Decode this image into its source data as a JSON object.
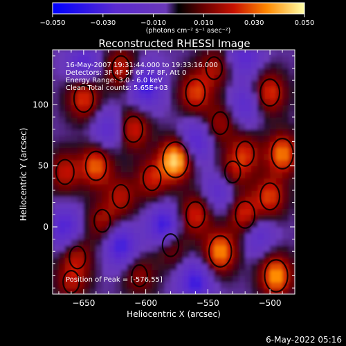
{
  "colorbar": {
    "ticks": [
      "-0.050",
      "-0.030",
      "-0.010",
      "0.010",
      "0.030",
      "0.050"
    ],
    "unit_label": "(photons cm⁻² s⁻¹ asec⁻²)",
    "range": [
      -0.05,
      0.05
    ]
  },
  "chart_data": {
    "type": "heatmap",
    "title": "Reconstructed RHESSI Image",
    "xlabel": "Heliocentric X (arcsec)",
    "ylabel": "Heliocentric Y (arcsec)",
    "xlim": [
      -675,
      -480
    ],
    "ylim": [
      -55,
      145
    ],
    "x_ticks": [
      -650,
      -600,
      -550,
      -500
    ],
    "y_ticks": [
      0,
      50,
      100
    ],
    "x_tick_labels": [
      "−650",
      "−600",
      "−550",
      "−500"
    ],
    "y_tick_labels": [
      "0",
      "50",
      "100"
    ],
    "info_lines": [
      "16-May-2007 19:31:44.000 to 19:33:16.000",
      "Detectors: 3F 4F 5F 6F 7F 8F, Att 0",
      "Energy Range: 3.0 - 6.0 keV",
      "Clean     Total counts: 5.65E+03"
    ],
    "peak_text": "Position of Peak = [-576,55]",
    "peak": {
      "x": -576,
      "y": 55
    },
    "blobs": [
      {
        "x": -576,
        "y": 55,
        "value": 0.05
      },
      {
        "x": -640,
        "y": 50,
        "value": 0.035
      },
      {
        "x": -650,
        "y": 105,
        "value": 0.03
      },
      {
        "x": -665,
        "y": 45,
        "value": 0.025
      },
      {
        "x": -635,
        "y": 5,
        "value": 0.02
      },
      {
        "x": -560,
        "y": 10,
        "value": 0.028
      },
      {
        "x": -540,
        "y": -20,
        "value": 0.04
      },
      {
        "x": -520,
        "y": 10,
        "value": 0.03
      },
      {
        "x": -490,
        "y": 60,
        "value": 0.038
      },
      {
        "x": -495,
        "y": -40,
        "value": 0.042
      },
      {
        "x": -500,
        "y": 110,
        "value": 0.03
      },
      {
        "x": -610,
        "y": 80,
        "value": 0.028
      },
      {
        "x": -595,
        "y": 40,
        "value": 0.025
      },
      {
        "x": -560,
        "y": 110,
        "value": 0.03
      },
      {
        "x": -540,
        "y": 85,
        "value": 0.02
      },
      {
        "x": -620,
        "y": 25,
        "value": 0.022
      },
      {
        "x": -655,
        "y": -25,
        "value": 0.02
      },
      {
        "x": -605,
        "y": -40,
        "value": 0.018
      },
      {
        "x": -580,
        "y": -15,
        "value": 0.02
      },
      {
        "x": -620,
        "y": 130,
        "value": 0.025
      },
      {
        "x": -520,
        "y": 60,
        "value": 0.025
      },
      {
        "x": -500,
        "y": 25,
        "value": 0.03
      },
      {
        "x": -660,
        "y": -45,
        "value": 0.02
      },
      {
        "x": -545,
        "y": 130,
        "value": 0.02
      },
      {
        "x": -530,
        "y": 45,
        "value": 0.018
      }
    ],
    "cold": [
      {
        "x": -600,
        "y": 115,
        "value": -0.03
      },
      {
        "x": -585,
        "y": 0,
        "value": -0.035
      },
      {
        "x": -620,
        "y": -15,
        "value": -0.03
      },
      {
        "x": -665,
        "y": 0,
        "value": -0.025
      },
      {
        "x": -540,
        "y": 30,
        "value": -0.02
      },
      {
        "x": -520,
        "y": 100,
        "value": -0.02
      },
      {
        "x": -630,
        "y": 80,
        "value": -0.02
      },
      {
        "x": -560,
        "y": 70,
        "value": -0.025
      },
      {
        "x": -510,
        "y": -5,
        "value": -0.02
      },
      {
        "x": -560,
        "y": -45,
        "value": -0.03
      },
      {
        "x": -520,
        "y": 140,
        "value": -0.02
      },
      {
        "x": -650,
        "y": 135,
        "value": -0.02
      }
    ]
  },
  "footer": {
    "date": "6-May-2022 05:16"
  }
}
